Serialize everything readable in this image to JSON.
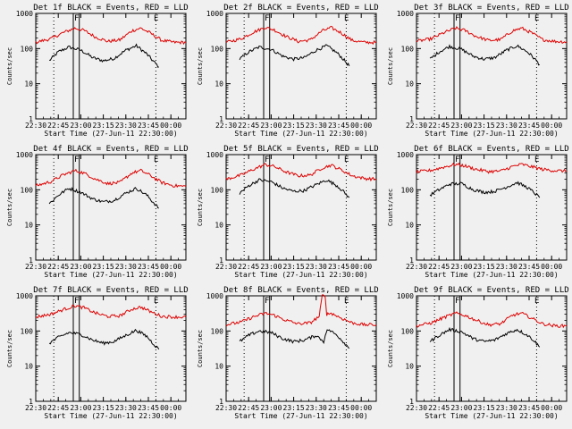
{
  "chart_data": [
    {
      "type": "line",
      "title": "Det 1f BLACK = Events, RED = LLD",
      "xlabel": "Start Time (27-Jun-11 22:30:00)",
      "ylabel": "Counts/sec",
      "x_ticks": [
        "22:30",
        "22:45",
        "23:00",
        "23:15",
        "23:30",
        "23:45",
        "00:00"
      ],
      "y_ticks": [
        "1",
        "10",
        "100",
        "1000"
      ],
      "yscale": "log",
      "ylim": [
        1,
        1000
      ],
      "x_range": [
        "22:30",
        "00:10"
      ],
      "markers": {
        "F": "22:55",
        "E": "23:48"
      },
      "dotted_lines": [
        "22:42",
        "23:50"
      ],
      "solid_lines": [
        "22:55",
        "22:59"
      ],
      "series": [
        {
          "name": "Events",
          "color": "#000000",
          "x": [
            "22:39",
            "22:45",
            "22:52",
            "23:00",
            "23:08",
            "23:15",
            "23:22",
            "23:30",
            "23:37",
            "23:44",
            "23:48",
            "23:52"
          ],
          "values": [
            45,
            80,
            110,
            90,
            55,
            45,
            52,
            90,
            120,
            70,
            45,
            30
          ]
        },
        {
          "name": "LLD",
          "color": "#dd0000",
          "x": [
            "22:30",
            "22:40",
            "22:48",
            "22:56",
            "23:02",
            "23:10",
            "23:18",
            "23:26",
            "23:34",
            "23:40",
            "23:46",
            "23:54",
            "00:02",
            "00:10"
          ],
          "values": [
            150,
            190,
            280,
            380,
            330,
            210,
            160,
            175,
            320,
            380,
            280,
            170,
            150,
            150
          ]
        }
      ]
    },
    {
      "type": "line",
      "title": "Det 2f BLACK = Events, RED = LLD",
      "xlabel": "Start Time (27-Jun-11 22:30:00)",
      "ylabel": "Counts/sec",
      "x_ticks": [
        "22:30",
        "22:45",
        "23:00",
        "23:15",
        "23:30",
        "23:45",
        "00:00"
      ],
      "y_ticks": [
        "1",
        "10",
        "100",
        "1000"
      ],
      "yscale": "log",
      "ylim": [
        1,
        1000
      ],
      "x_range": [
        "22:30",
        "00:10"
      ],
      "markers": {
        "F": "22:55",
        "E": "23:48"
      },
      "dotted_lines": [
        "22:42",
        "23:50"
      ],
      "solid_lines": [
        "22:55",
        "22:59"
      ],
      "series": [
        {
          "name": "Events",
          "color": "#000000",
          "x": [
            "22:39",
            "22:45",
            "22:52",
            "23:00",
            "23:08",
            "23:15",
            "23:22",
            "23:30",
            "23:37",
            "23:44",
            "23:48",
            "23:52"
          ],
          "values": [
            50,
            80,
            110,
            95,
            60,
            50,
            55,
            90,
            120,
            75,
            50,
            32
          ]
        },
        {
          "name": "LLD",
          "color": "#dd0000",
          "x": [
            "22:30",
            "22:40",
            "22:48",
            "22:56",
            "23:02",
            "23:10",
            "23:18",
            "23:26",
            "23:34",
            "23:40",
            "23:46",
            "23:54",
            "00:02",
            "00:10"
          ],
          "values": [
            150,
            190,
            290,
            400,
            340,
            220,
            160,
            175,
            320,
            390,
            290,
            170,
            150,
            150
          ]
        }
      ]
    },
    {
      "type": "line",
      "title": "Det 3f BLACK = Events, RED = LLD",
      "xlabel": "Start Time (27-Jun-11 22:30:00)",
      "ylabel": "Counts/sec",
      "x_ticks": [
        "22:30",
        "22:45",
        "23:00",
        "23:15",
        "23:30",
        "23:45",
        "00:00"
      ],
      "y_ticks": [
        "1",
        "10",
        "100",
        "1000"
      ],
      "yscale": "log",
      "ylim": [
        1,
        1000
      ],
      "x_range": [
        "22:30",
        "00:10"
      ],
      "markers": {
        "F": "22:55",
        "E": "23:48"
      },
      "dotted_lines": [
        "22:42",
        "23:50"
      ],
      "solid_lines": [
        "22:55",
        "22:59"
      ],
      "series": [
        {
          "name": "Events",
          "color": "#000000",
          "x": [
            "22:39",
            "22:45",
            "22:52",
            "23:00",
            "23:08",
            "23:15",
            "23:22",
            "23:30",
            "23:37",
            "23:44",
            "23:48",
            "23:52"
          ],
          "values": [
            50,
            80,
            115,
            95,
            60,
            50,
            55,
            90,
            120,
            80,
            55,
            35
          ]
        },
        {
          "name": "LLD",
          "color": "#dd0000",
          "x": [
            "22:30",
            "22:40",
            "22:48",
            "22:56",
            "23:02",
            "23:10",
            "23:18",
            "23:26",
            "23:34",
            "23:40",
            "23:46",
            "23:54",
            "00:02",
            "00:10"
          ],
          "values": [
            160,
            190,
            280,
            380,
            330,
            220,
            170,
            180,
            320,
            380,
            290,
            180,
            160,
            155
          ]
        }
      ]
    },
    {
      "type": "line",
      "title": "Det 4f BLACK = Events, RED = LLD",
      "xlabel": "Start Time (27-Jun-11 22:30:00)",
      "ylabel": "Counts/sec",
      "x_ticks": [
        "22:30",
        "22:45",
        "23:00",
        "23:15",
        "23:30",
        "23:45",
        "00:00"
      ],
      "y_ticks": [
        "1",
        "10",
        "100",
        "1000"
      ],
      "yscale": "log",
      "ylim": [
        1,
        1000
      ],
      "x_range": [
        "22:30",
        "00:10"
      ],
      "markers": {
        "F": "22:55",
        "E": "23:48"
      },
      "dotted_lines": [
        "22:42",
        "23:50"
      ],
      "solid_lines": [
        "22:55",
        "22:59"
      ],
      "series": [
        {
          "name": "Events",
          "color": "#000000",
          "x": [
            "22:39",
            "22:45",
            "22:52",
            "23:00",
            "23:08",
            "23:15",
            "23:22",
            "23:30",
            "23:37",
            "23:44",
            "23:48",
            "23:52"
          ],
          "values": [
            40,
            70,
            110,
            85,
            55,
            45,
            50,
            80,
            110,
            70,
            45,
            30
          ]
        },
        {
          "name": "LLD",
          "color": "#dd0000",
          "x": [
            "22:30",
            "22:40",
            "22:48",
            "22:56",
            "23:02",
            "23:10",
            "23:18",
            "23:26",
            "23:34",
            "23:40",
            "23:46",
            "23:54",
            "00:02",
            "00:10"
          ],
          "values": [
            130,
            170,
            260,
            350,
            300,
            200,
            150,
            160,
            300,
            350,
            260,
            160,
            130,
            125
          ]
        }
      ]
    },
    {
      "type": "line",
      "title": "Det 5f BLACK = Events, RED = LLD",
      "xlabel": "Start Time (27-Jun-11 22:30:00)",
      "ylabel": "Counts/sec",
      "x_ticks": [
        "22:30",
        "22:45",
        "23:00",
        "23:15",
        "23:30",
        "23:45",
        "00:00"
      ],
      "y_ticks": [
        "1",
        "10",
        "100",
        "1000"
      ],
      "yscale": "log",
      "ylim": [
        1,
        1000
      ],
      "x_range": [
        "22:30",
        "00:10"
      ],
      "markers": {
        "F": "22:55",
        "E": "23:48"
      },
      "dotted_lines": [
        "22:42",
        "23:50"
      ],
      "solid_lines": [
        "22:55",
        "22:59"
      ],
      "series": [
        {
          "name": "Events",
          "color": "#000000",
          "x": [
            "22:39",
            "22:45",
            "22:52",
            "23:00",
            "23:08",
            "23:15",
            "23:22",
            "23:30",
            "23:37",
            "23:44",
            "23:48",
            "23:52"
          ],
          "values": [
            80,
            130,
            190,
            170,
            110,
            90,
            95,
            140,
            190,
            130,
            90,
            60
          ]
        },
        {
          "name": "LLD",
          "color": "#dd0000",
          "x": [
            "22:30",
            "22:40",
            "22:48",
            "22:56",
            "23:02",
            "23:10",
            "23:18",
            "23:26",
            "23:34",
            "23:40",
            "23:46",
            "23:54",
            "00:02",
            "00:10"
          ],
          "values": [
            200,
            260,
            380,
            520,
            460,
            320,
            250,
            260,
            420,
            500,
            380,
            250,
            210,
            200
          ]
        }
      ]
    },
    {
      "type": "line",
      "title": "Det 6f BLACK = Events, RED = LLD",
      "xlabel": "Start Time (27-Jun-11 22:30:00)",
      "ylabel": "Counts/sec",
      "x_ticks": [
        "22:30",
        "22:45",
        "23:00",
        "23:15",
        "23:30",
        "23:45",
        "00:00"
      ],
      "y_ticks": [
        "1",
        "10",
        "100",
        "1000"
      ],
      "yscale": "log",
      "ylim": [
        1,
        1000
      ],
      "x_range": [
        "22:30",
        "00:10"
      ],
      "markers": {
        "F": "22:55",
        "E": "23:48"
      },
      "dotted_lines": [
        "22:42",
        "23:50"
      ],
      "solid_lines": [
        "22:55",
        "22:59"
      ],
      "series": [
        {
          "name": "Events",
          "color": "#000000",
          "x": [
            "22:39",
            "22:45",
            "22:52",
            "23:00",
            "23:08",
            "23:15",
            "23:22",
            "23:30",
            "23:37",
            "23:44",
            "23:48",
            "23:52"
          ],
          "values": [
            70,
            100,
            145,
            150,
            100,
            85,
            90,
            120,
            160,
            115,
            85,
            60
          ]
        },
        {
          "name": "LLD",
          "color": "#dd0000",
          "x": [
            "22:30",
            "22:40",
            "22:48",
            "22:56",
            "23:02",
            "23:10",
            "23:18",
            "23:26",
            "23:34",
            "23:40",
            "23:46",
            "23:54",
            "00:02",
            "00:10"
          ],
          "values": [
            320,
            360,
            440,
            530,
            480,
            380,
            330,
            340,
            460,
            530,
            460,
            380,
            350,
            340
          ]
        }
      ]
    },
    {
      "type": "line",
      "title": "Det 7f BLACK = Events, RED = LLD",
      "xlabel": "Start Time (27-Jun-11 22:30:00)",
      "ylabel": "Counts/sec",
      "x_ticks": [
        "22:30",
        "22:45",
        "23:00",
        "23:15",
        "23:30",
        "23:45",
        "00:00"
      ],
      "y_ticks": [
        "1",
        "10",
        "100",
        "1000"
      ],
      "yscale": "log",
      "ylim": [
        1,
        1000
      ],
      "x_range": [
        "22:30",
        "00:10"
      ],
      "markers": {
        "F": "22:55",
        "E": "23:48"
      },
      "dotted_lines": [
        "22:42",
        "23:50"
      ],
      "solid_lines": [
        "22:55",
        "22:59"
      ],
      "series": [
        {
          "name": "Events",
          "color": "#000000",
          "x": [
            "22:39",
            "22:45",
            "22:52",
            "23:00",
            "23:08",
            "23:15",
            "23:22",
            "23:30",
            "23:37",
            "23:44",
            "23:48",
            "23:52"
          ],
          "values": [
            45,
            65,
            90,
            80,
            55,
            45,
            50,
            75,
            105,
            70,
            45,
            30
          ]
        },
        {
          "name": "LLD",
          "color": "#dd0000",
          "x": [
            "22:30",
            "22:40",
            "22:48",
            "22:56",
            "23:02",
            "23:10",
            "23:18",
            "23:26",
            "23:34",
            "23:40",
            "23:46",
            "23:54",
            "00:02",
            "00:10"
          ],
          "values": [
            250,
            300,
            400,
            520,
            460,
            320,
            260,
            270,
            420,
            480,
            360,
            260,
            250,
            250
          ]
        }
      ]
    },
    {
      "type": "line",
      "title": "Det 8f BLACK = Events, RED = LLD",
      "xlabel": "Start Time (27-Jun-11 22:30:00)",
      "ylabel": "Counts/sec",
      "x_ticks": [
        "22:30",
        "22:45",
        "23:00",
        "23:15",
        "23:30",
        "23:45",
        "00:00"
      ],
      "y_ticks": [
        "1",
        "10",
        "100",
        "1000"
      ],
      "yscale": "log",
      "ylim": [
        1,
        1000
      ],
      "x_range": [
        "22:30",
        "00:10"
      ],
      "markers": {
        "F": "22:55",
        "E": "23:48"
      },
      "dotted_lines": [
        "22:42",
        "23:50"
      ],
      "solid_lines": [
        "22:55",
        "22:59"
      ],
      "series": [
        {
          "name": "Events",
          "color": "#000000",
          "x": [
            "22:39",
            "22:45",
            "22:52",
            "23:00",
            "23:08",
            "23:15",
            "23:22",
            "23:30",
            "23:35",
            "23:36",
            "23:38",
            "23:44",
            "23:48",
            "23:52"
          ],
          "values": [
            50,
            75,
            100,
            90,
            60,
            50,
            55,
            75,
            50,
            80,
            110,
            75,
            50,
            32
          ]
        },
        {
          "name": "LLD",
          "color": "#dd0000",
          "x": [
            "22:30",
            "22:40",
            "22:48",
            "22:56",
            "23:02",
            "23:10",
            "23:18",
            "23:26",
            "23:32",
            "23:34",
            "23:36",
            "23:37",
            "23:40",
            "23:46",
            "23:54",
            "00:02",
            "00:10"
          ],
          "values": [
            150,
            180,
            250,
            320,
            280,
            200,
            160,
            170,
            260,
            1000,
            1000,
            300,
            320,
            240,
            170,
            150,
            150
          ]
        }
      ]
    },
    {
      "type": "line",
      "title": "Det 9f BLACK = Events, RED = LLD",
      "xlabel": "Start Time (27-Jun-11 22:30:00)",
      "ylabel": "Counts/sec",
      "x_ticks": [
        "22:30",
        "22:45",
        "23:00",
        "23:15",
        "23:30",
        "23:45",
        "00:00"
      ],
      "y_ticks": [
        "1",
        "10",
        "100",
        "1000"
      ],
      "yscale": "log",
      "ylim": [
        1,
        1000
      ],
      "x_range": [
        "22:30",
        "00:10"
      ],
      "markers": {
        "F": "22:55",
        "E": "23:48"
      },
      "dotted_lines": [
        "22:42",
        "23:50"
      ],
      "solid_lines": [
        "22:55",
        "22:59"
      ],
      "series": [
        {
          "name": "Events",
          "color": "#000000",
          "x": [
            "22:39",
            "22:45",
            "22:52",
            "23:00",
            "23:08",
            "23:15",
            "23:22",
            "23:30",
            "23:37",
            "23:44",
            "23:48",
            "23:52"
          ],
          "values": [
            50,
            75,
            110,
            95,
            60,
            50,
            55,
            85,
            110,
            75,
            55,
            35
          ]
        },
        {
          "name": "LLD",
          "color": "#dd0000",
          "x": [
            "22:30",
            "22:40",
            "22:48",
            "22:56",
            "23:02",
            "23:10",
            "23:18",
            "23:26",
            "23:34",
            "23:40",
            "23:46",
            "23:54",
            "00:02",
            "00:10"
          ],
          "values": [
            140,
            170,
            240,
            320,
            280,
            200,
            150,
            160,
            280,
            320,
            240,
            160,
            140,
            140
          ]
        }
      ]
    }
  ]
}
